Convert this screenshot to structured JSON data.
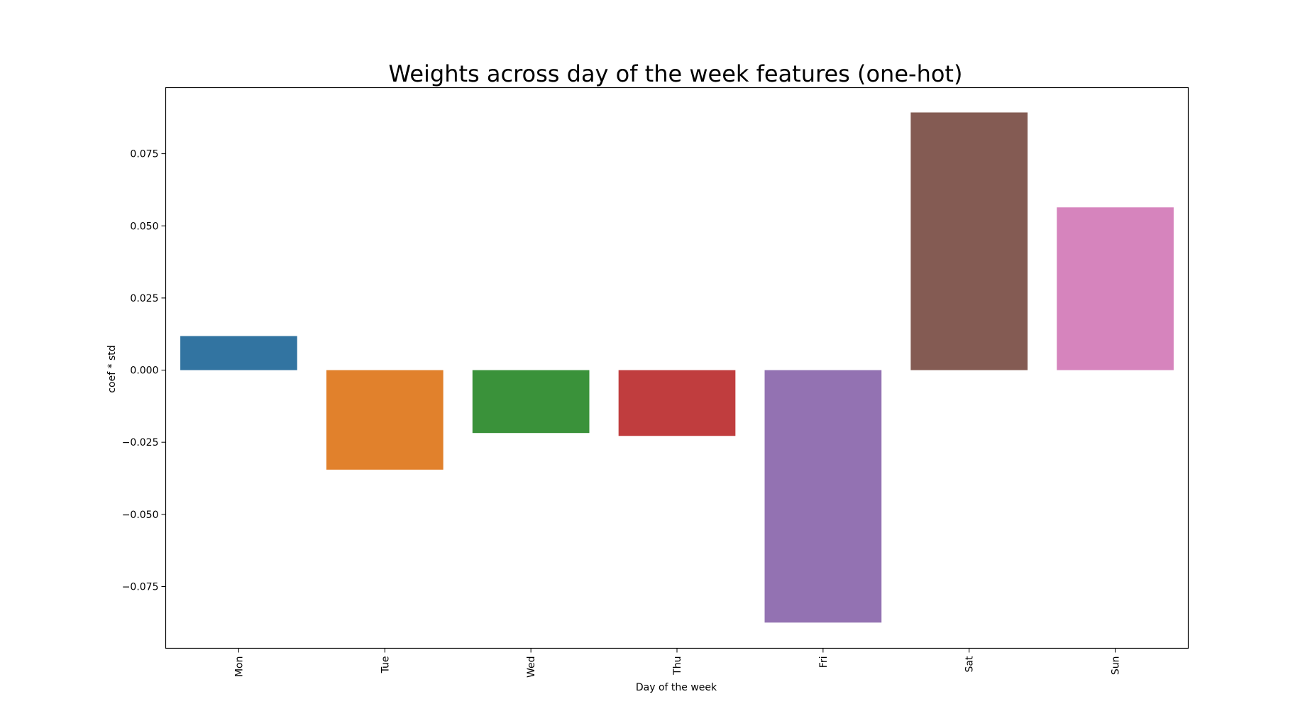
{
  "chart_data": {
    "type": "bar",
    "title": "Weights across day of the week features (one-hot)",
    "xlabel": "Day of the week",
    "ylabel": "coef * std",
    "categories": [
      "Mon",
      "Tue",
      "Wed",
      "Thu",
      "Fri",
      "Sat",
      "Sun"
    ],
    "values": [
      0.0118,
      -0.0345,
      -0.0218,
      -0.0228,
      -0.0875,
      0.0893,
      0.0564
    ],
    "colors": [
      "#3274a1",
      "#e1812c",
      "#3a923a",
      "#c03d3e",
      "#9372b2",
      "#845b53",
      "#d684bd"
    ],
    "ylim": [
      -0.0964,
      0.0979
    ],
    "yticks": [
      -0.075,
      -0.05,
      -0.025,
      0.0,
      0.025,
      0.05,
      0.075
    ],
    "ytick_labels": [
      "−0.075",
      "−0.050",
      "−0.025",
      "0.000",
      "0.025",
      "0.050",
      "0.075"
    ],
    "grid": false,
    "legend": "none"
  }
}
